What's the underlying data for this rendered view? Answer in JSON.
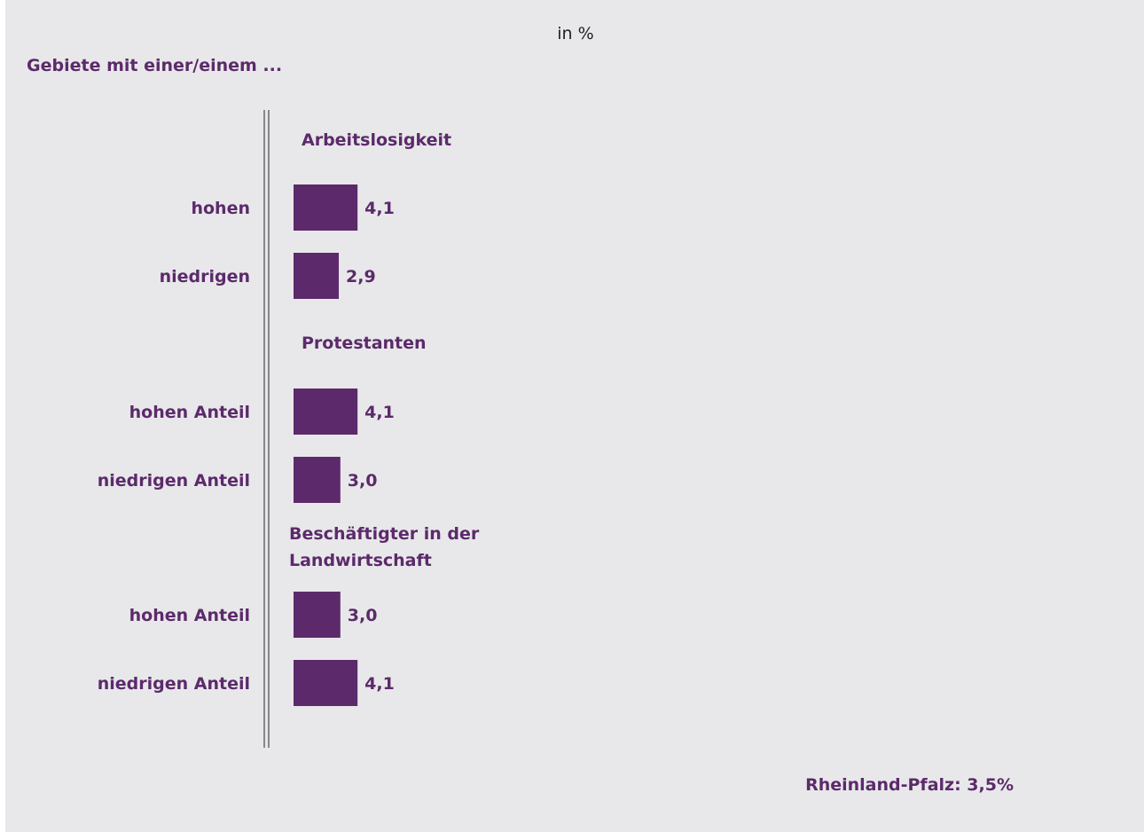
{
  "chart_data": {
    "type": "bar",
    "orientation": "horizontal",
    "unit_label": "in %",
    "title": "Gebiete mit einer/einem ...",
    "groups": [
      {
        "label": "Arbeitslosigkeit",
        "items": [
          {
            "category": "hohen",
            "value": 4.1,
            "value_label": "4,1"
          },
          {
            "category": "niedrigen",
            "value": 2.9,
            "value_label": "2,9"
          }
        ]
      },
      {
        "label": "Protestanten",
        "items": [
          {
            "category": "hohen Anteil",
            "value": 4.1,
            "value_label": "4,1"
          },
          {
            "category": "niedrigen Anteil",
            "value": 3.0,
            "value_label": "3,0"
          }
        ]
      },
      {
        "label": "Beschäftigter in der Landwirtschaft",
        "label_lines": [
          "Beschäftigter in der",
          "Landwirtschaft"
        ],
        "items": [
          {
            "category": "hohen Anteil",
            "value": 3.0,
            "value_label": "3,0"
          },
          {
            "category": "niedrigen Anteil",
            "value": 4.1,
            "value_label": "4,1"
          }
        ]
      }
    ],
    "reference_note": "Rheinland-Pfalz: 3,5%",
    "bar_color": "#5c2a6b",
    "axis_color": "#888888",
    "background_color": "#e8e8ea"
  }
}
